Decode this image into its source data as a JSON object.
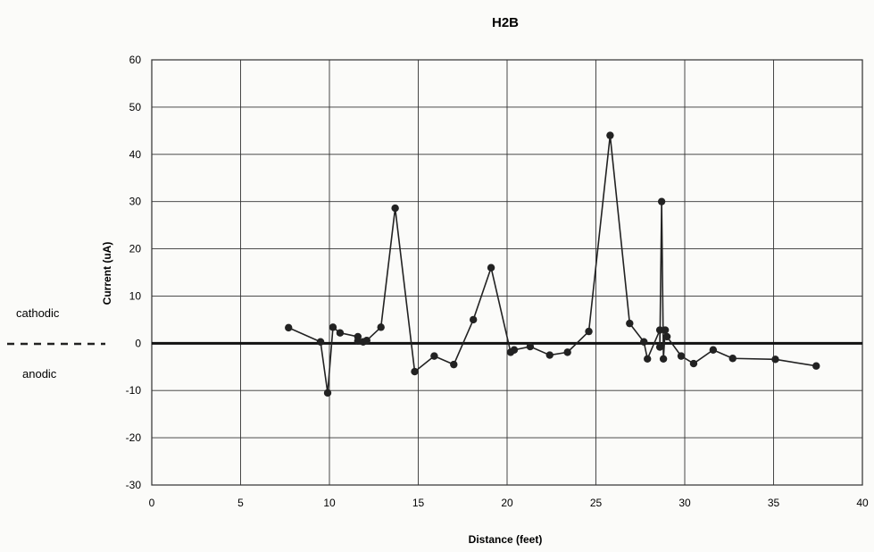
{
  "chart_data": {
    "type": "line",
    "title": "H2B",
    "xlabel": "Distance (feet)",
    "ylabel": "Current (uA)",
    "xlim": [
      0,
      40
    ],
    "ylim": [
      -30,
      60
    ],
    "x_ticks": [
      "0",
      "5",
      "10",
      "15",
      "20",
      "25",
      "30",
      "35",
      "40"
    ],
    "y_ticks": [
      "60",
      "50",
      "40",
      "30",
      "20",
      "10",
      "0",
      "-10",
      "-20",
      "-30"
    ],
    "grid": true,
    "side_labels": {
      "above_zero": "cathodic",
      "below_zero": "anodic"
    },
    "series": [
      {
        "points": [
          [
            7.7,
            3.3
          ],
          [
            9.5,
            0.3
          ],
          [
            9.9,
            -10.5
          ],
          [
            10.2,
            3.4
          ],
          [
            10.6,
            2.2
          ],
          [
            11.6,
            1.4
          ],
          [
            11.6,
            0.5
          ],
          [
            11.9,
            0.3
          ],
          [
            12.1,
            0.6
          ],
          [
            12.9,
            3.4
          ],
          [
            13.7,
            28.6
          ],
          [
            14.8,
            -6.0
          ],
          [
            15.9,
            -2.7
          ],
          [
            17.0,
            -4.5
          ],
          [
            18.1,
            5.0
          ],
          [
            19.1,
            16.0
          ],
          [
            20.2,
            -1.9
          ],
          [
            20.4,
            -1.4
          ],
          [
            21.3,
            -0.7
          ],
          [
            22.4,
            -2.5
          ],
          [
            23.4,
            -1.9
          ],
          [
            24.6,
            2.5
          ],
          [
            25.8,
            44.0
          ],
          [
            26.9,
            4.2
          ],
          [
            27.7,
            0.3
          ],
          [
            27.9,
            -3.3
          ],
          [
            28.6,
            2.8
          ],
          [
            28.6,
            -0.8
          ],
          [
            28.7,
            30.0
          ],
          [
            28.8,
            -3.3
          ],
          [
            28.9,
            2.8
          ],
          [
            29.0,
            1.4
          ],
          [
            29.8,
            -2.7
          ],
          [
            30.5,
            -4.3
          ],
          [
            31.6,
            -1.4
          ],
          [
            32.7,
            -3.2
          ],
          [
            35.1,
            -3.4
          ],
          [
            37.4,
            -4.8
          ]
        ]
      }
    ]
  }
}
